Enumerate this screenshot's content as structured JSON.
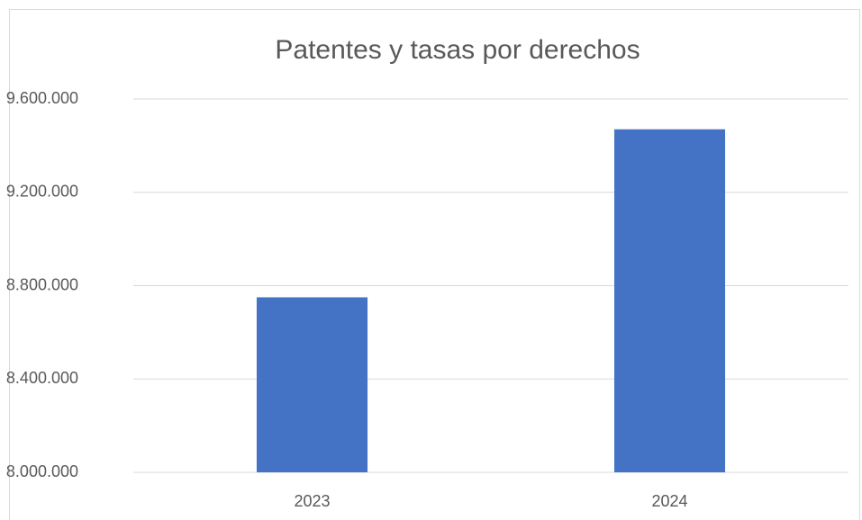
{
  "chart_data": {
    "type": "bar",
    "title": "Patentes y tasas por derechos",
    "categories": [
      "2023",
      "2024"
    ],
    "values": [
      8750000,
      9470000
    ],
    "color": "#4472c4",
    "ylim": [
      8000000,
      9600000
    ],
    "yticks": [
      {
        "value": 8000000,
        "label": "8.000.000"
      },
      {
        "value": 8400000,
        "label": "8.400.000"
      },
      {
        "value": 8800000,
        "label": "8.800.000"
      },
      {
        "value": 9200000,
        "label": "9.200.000"
      },
      {
        "value": 9600000,
        "label": "9.600.000"
      }
    ],
    "grid": true
  }
}
